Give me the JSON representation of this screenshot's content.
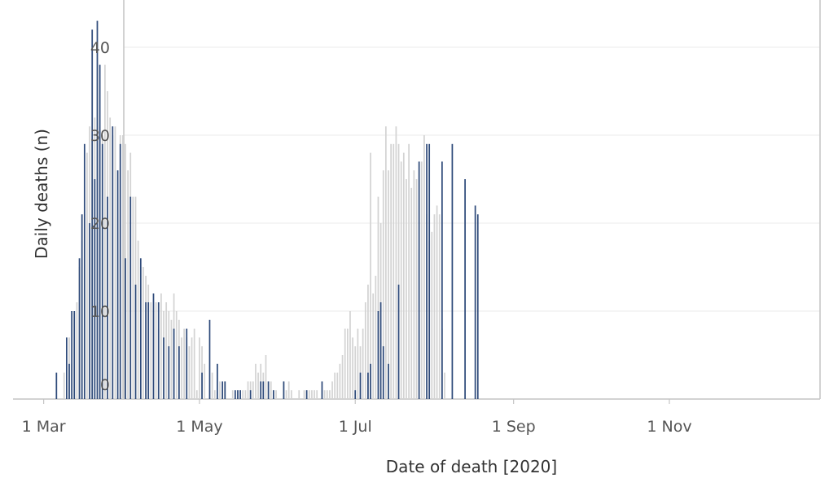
{
  "chart_data": {
    "type": "bar",
    "title": "",
    "xlabel": "Date of death [2020]",
    "ylabel": "Daily deaths (n)",
    "ylim": [
      0,
      45
    ],
    "y_ticks": [
      {
        "value": 0,
        "label": "0"
      },
      {
        "value": 10,
        "label": "10"
      },
      {
        "value": 20,
        "label": "20"
      },
      {
        "value": 30,
        "label": "30"
      },
      {
        "value": 40,
        "label": "40"
      }
    ],
    "x_ticks": [
      {
        "day": 0,
        "label": "1 Mar"
      },
      {
        "day": 61,
        "label": "1 May"
      },
      {
        "day": 122,
        "label": "1 Jul"
      },
      {
        "day": 184,
        "label": "1 Sep"
      },
      {
        "day": 245,
        "label": "1 Nov"
      }
    ],
    "start_date": "2020-03-01",
    "x_range_days": [
      -12,
      304
    ],
    "colors": {
      "highlight": "#2e4a7a",
      "background": "#d3d3d3"
    },
    "series": [
      {
        "name": "highlight",
        "start_day": 5,
        "values": [
          3,
          0,
          0,
          0,
          7,
          4,
          10,
          10,
          0,
          16,
          21,
          29,
          0,
          20,
          42,
          25,
          43,
          38,
          29,
          0,
          23,
          0,
          31,
          0,
          26,
          29,
          0,
          16,
          0,
          23,
          0,
          13,
          0,
          16,
          0,
          11,
          11,
          0,
          12,
          0,
          11,
          0,
          7,
          0,
          6,
          0,
          8,
          0,
          6,
          0,
          0,
          8,
          0,
          0,
          0,
          0,
          0,
          3,
          0,
          0,
          9,
          0,
          0,
          4,
          0,
          2,
          2,
          0,
          0,
          0,
          1,
          1,
          1,
          0,
          0,
          0,
          1,
          0,
          0,
          0,
          2,
          2,
          0,
          2,
          0,
          1,
          0,
          0,
          0,
          2,
          0,
          0,
          0,
          0,
          0,
          0,
          0,
          0,
          1,
          0,
          0,
          0,
          0,
          0,
          2,
          0,
          0,
          0,
          0,
          0,
          0,
          0,
          0,
          0,
          0,
          0,
          0,
          1,
          0,
          3,
          0,
          0,
          3,
          4,
          0,
          0,
          10,
          11,
          6,
          0,
          4,
          0,
          0,
          0,
          13,
          0,
          0,
          0,
          0,
          0,
          0,
          0,
          27,
          0,
          0,
          29,
          29,
          0,
          0,
          0,
          0,
          27,
          0,
          0,
          0,
          29,
          0,
          0,
          0,
          0,
          25,
          0,
          0,
          0,
          22,
          21
        ]
      },
      {
        "name": "background",
        "start_day": 8,
        "values": [
          3,
          0,
          7,
          4,
          10,
          11,
          15,
          18,
          21,
          28,
          31,
          30,
          32,
          43,
          31,
          30,
          38,
          35,
          32,
          30,
          31,
          0,
          30,
          30,
          29,
          26,
          28,
          23,
          23,
          18,
          15,
          15,
          14,
          13,
          11,
          10,
          11,
          8,
          12,
          10,
          11,
          10,
          9,
          12,
          10,
          9,
          7,
          8,
          7,
          6,
          7,
          8,
          1,
          7,
          6,
          4,
          0,
          1,
          3,
          1,
          0,
          2,
          1,
          2,
          0,
          0,
          1,
          0,
          1,
          1,
          1,
          1,
          2,
          2,
          2,
          4,
          3,
          4,
          3,
          5,
          2,
          2,
          1,
          1,
          0,
          0,
          2,
          1,
          2,
          1,
          0,
          0,
          1,
          0,
          1,
          1,
          1,
          1,
          1,
          1,
          0,
          1,
          1,
          1,
          1,
          2,
          3,
          3,
          4,
          5,
          8,
          8,
          10,
          7,
          6,
          8,
          6,
          8,
          11,
          13,
          28,
          12,
          14,
          23,
          20,
          26,
          31,
          26,
          29,
          29,
          31,
          29,
          27,
          28,
          25,
          29,
          24,
          26,
          25,
          17,
          27,
          30,
          21,
          18,
          19,
          21,
          22,
          21,
          8,
          3
        ]
      }
    ]
  }
}
